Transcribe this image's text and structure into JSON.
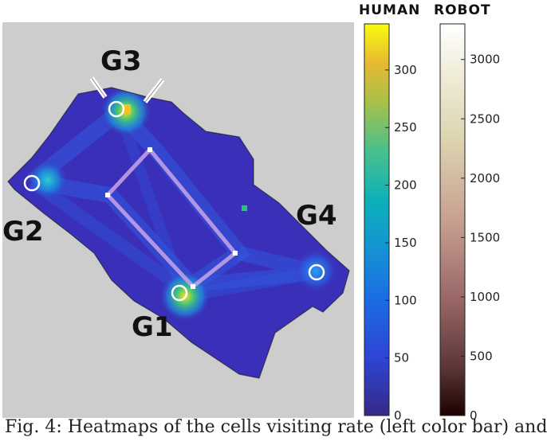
{
  "chart_data": {
    "type": "heatmap",
    "title": "",
    "goals": [
      {
        "label": "G1"
      },
      {
        "label": "G2"
      },
      {
        "label": "G3"
      },
      {
        "label": "G4"
      }
    ],
    "colorbars": [
      {
        "name": "HUMAN",
        "colormap": "parula",
        "range": [
          0,
          340
        ],
        "ticks": [
          0,
          50,
          100,
          150,
          200,
          250,
          300
        ]
      },
      {
        "name": "ROBOT",
        "colormap": "pink",
        "range": [
          0,
          3300
        ],
        "ticks": [
          0,
          500,
          1000,
          1500,
          2000,
          2500,
          3000
        ]
      }
    ],
    "colors": {
      "background_map": "#cdcdcd",
      "heatmap_base": "#3a2fb8",
      "goal_marker": "#ffffff"
    }
  },
  "caption": "Fig. 4: Heatmaps of the cells visiting rate (left color bar) and"
}
